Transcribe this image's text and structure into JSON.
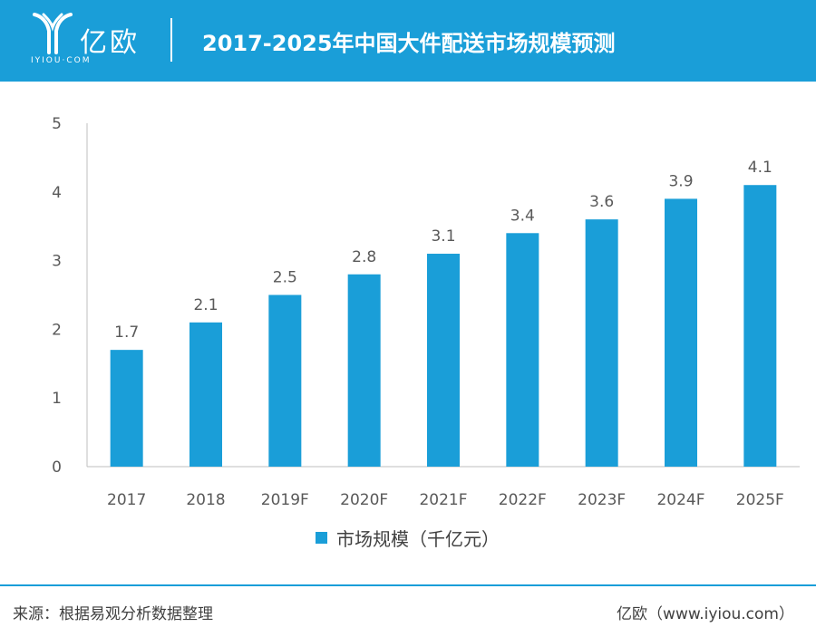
{
  "header": {
    "logo_text": "亿欧",
    "logo_sub": "IYIOU·COM",
    "title": "2017-2025年中国大件配送市场规模预测"
  },
  "colors": {
    "accent": "#1a9ed8",
    "bar": "#1a9ed8",
    "axis": "#bfbfbf",
    "text": "#595959"
  },
  "chart_data": {
    "type": "bar",
    "title": "2017-2025年中国大件配送市场规模预测",
    "categories": [
      "2017",
      "2018",
      "2019F",
      "2020F",
      "2021F",
      "2022F",
      "2023F",
      "2024F",
      "2025F"
    ],
    "series": [
      {
        "name": "市场规模（千亿元）",
        "values": [
          1.7,
          2.1,
          2.5,
          2.8,
          3.1,
          3.4,
          3.6,
          3.9,
          4.1
        ]
      }
    ],
    "data_labels": [
      "1.7",
      "2.1",
      "2.5",
      "2.8",
      "3.1",
      "3.4",
      "3.6",
      "3.9",
      "4.1"
    ],
    "yticks": [
      "0",
      "1",
      "2",
      "3",
      "4",
      "5"
    ],
    "ylim": [
      0,
      5
    ],
    "xlabel": "",
    "ylabel": "",
    "legend_position": "bottom"
  },
  "legend": {
    "label": "市场规模（千亿元）"
  },
  "footer": {
    "source": "来源：根据易观分析数据整理",
    "brand": "亿欧（www.iyiou.com）"
  }
}
